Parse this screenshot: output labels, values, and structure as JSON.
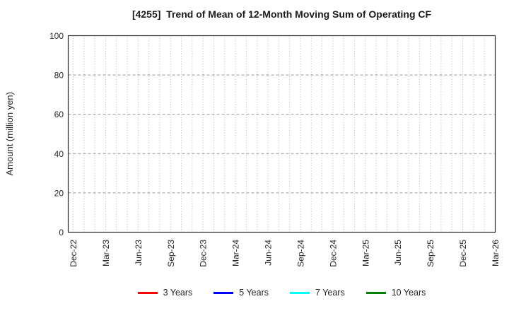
{
  "figure": {
    "title": "[4255]  Trend of Mean of 12-Month Moving Sum of Operating CF",
    "ylabel": "Amount (million yen)"
  },
  "chart_data": {
    "type": "line",
    "title": "[4255]  Trend of Mean of 12-Month Moving Sum of Operating CF",
    "xlabel": "",
    "ylabel": "Amount (million yen)",
    "ylim": [
      0,
      100
    ],
    "y_ticks": [
      0,
      20,
      40,
      60,
      80,
      100
    ],
    "x_tick_labels": [
      "Dec-22",
      "Mar-23",
      "Jun-23",
      "Sep-23",
      "Dec-23",
      "Mar-24",
      "Jun-24",
      "Sep-24",
      "Dec-24",
      "Mar-25",
      "Jun-25",
      "Sep-25",
      "Dec-25",
      "Mar-26"
    ],
    "months_per_labeled_tick": 3,
    "grid": true,
    "legend_position": "bottom-center",
    "series": [
      {
        "name": "3 Years",
        "color": "#ff0000",
        "x": [],
        "values": []
      },
      {
        "name": "5 Years",
        "color": "#0000ff",
        "x": [],
        "values": []
      },
      {
        "name": "7 Years",
        "color": "#00ffff",
        "x": [],
        "values": []
      },
      {
        "name": "10 Years",
        "color": "#008000",
        "x": [],
        "values": []
      }
    ],
    "colors": {
      "axis": "#262626",
      "grid_vertical": "#b3b3b3",
      "grid_horizontal": "#999999",
      "text": "#262626",
      "background": "#ffffff"
    }
  }
}
